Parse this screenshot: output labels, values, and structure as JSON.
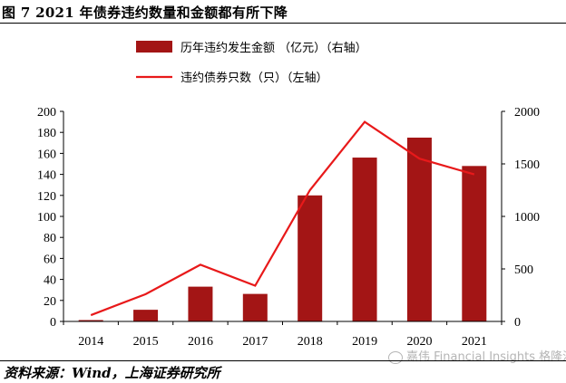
{
  "title": "图 7 2021 年债券违约数量和金额都有所下降",
  "source": "资料来源：Wind，上海证券研究所",
  "watermark": "嘉伟 Financial Insights 格隆汇",
  "colors": {
    "bar": "#a31515",
    "line": "#e8191a",
    "axis": "#000000"
  },
  "chart_data": {
    "type": "bar",
    "categories": [
      "2014",
      "2015",
      "2016",
      "2017",
      "2018",
      "2019",
      "2020",
      "2021"
    ],
    "series": [
      {
        "name": "历年违约发生金额 （亿元）（右轴）",
        "type": "bar",
        "axis": "right",
        "values": [
          13,
          111,
          331,
          262,
          1200,
          1560,
          1750,
          1480
        ]
      },
      {
        "name": "违约债券只数（只）（左轴）",
        "type": "line",
        "axis": "left",
        "values": [
          6,
          26,
          54,
          34,
          125,
          190,
          155,
          140
        ]
      }
    ],
    "left_axis": {
      "ylim": [
        0,
        200
      ],
      "ticks": [
        "0",
        "20",
        "40",
        "60",
        "80",
        "100",
        "120",
        "140",
        "160",
        "180",
        "200"
      ]
    },
    "right_axis": {
      "ylim": [
        0,
        2000
      ],
      "ticks": [
        "0",
        "500",
        "1000",
        "1500",
        "2000"
      ]
    },
    "legend": "top-center",
    "grid": false
  }
}
